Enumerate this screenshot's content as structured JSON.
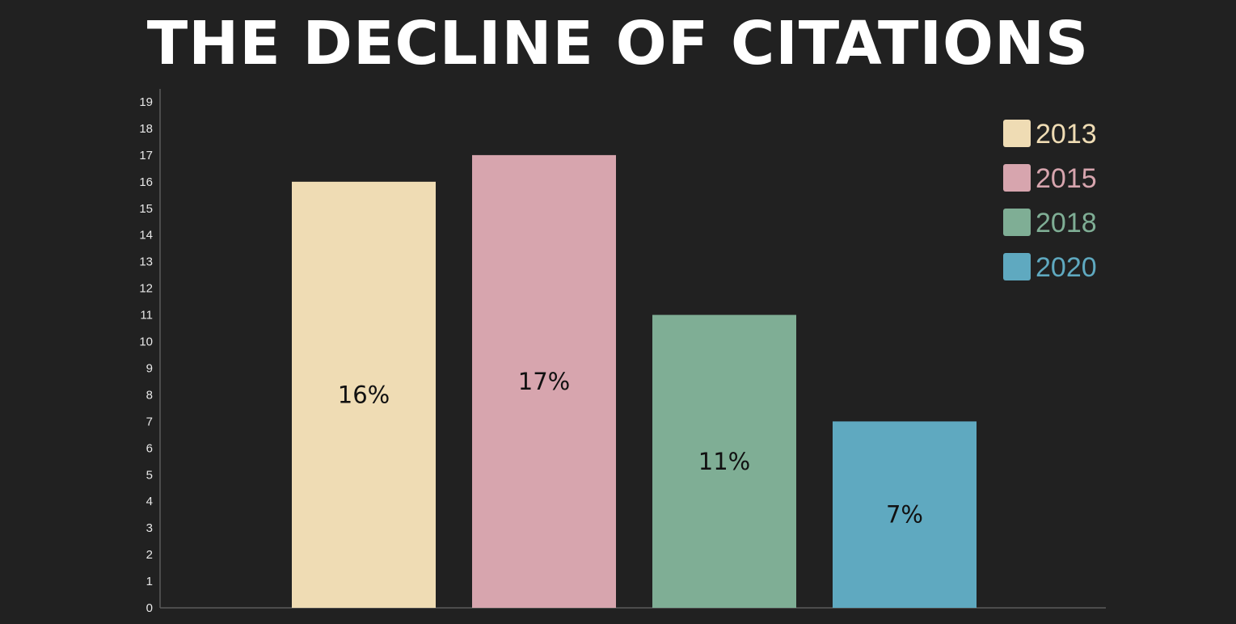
{
  "title": "THE DECLINE OF CITATIONS",
  "chart_data": {
    "type": "bar",
    "title": "THE DECLINE OF CITATIONS",
    "categories": [
      "2013",
      "2015",
      "2018",
      "2020"
    ],
    "values": [
      16,
      17,
      11,
      7
    ],
    "data_labels": [
      "16%",
      "17%",
      "11%",
      "7%"
    ],
    "colors": [
      "#efdcb4",
      "#d7a5ae",
      "#7fae95",
      "#5fa9c0"
    ],
    "xlabel": "",
    "ylabel": "",
    "ylim": [
      0,
      19
    ],
    "y_ticks": [
      "0",
      "1",
      "2",
      "3",
      "4",
      "5",
      "6",
      "7",
      "8",
      "9",
      "10",
      "11",
      "12",
      "13",
      "14",
      "15",
      "16",
      "17",
      "18",
      "19"
    ],
    "grid": false,
    "legend": {
      "placement": "top-right",
      "entries": [
        "2013",
        "2015",
        "2018",
        "2020"
      ]
    },
    "background": "#212121",
    "axis_color": "#5a5a5a"
  }
}
